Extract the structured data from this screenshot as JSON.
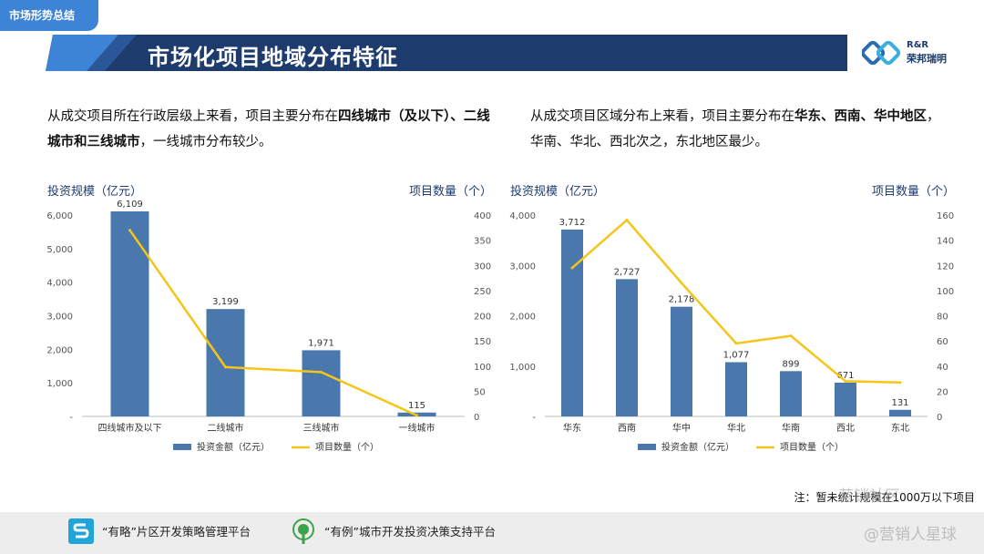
{
  "section_tag": "市场形势总结",
  "title": "市场化项目地域分布特征",
  "logo": {
    "line1": "R&R",
    "line2": "荣邦瑞明"
  },
  "left_desc": {
    "p1": "从成交项目所在行政层级上来看，项目主要分布在",
    "b1": "四线城市（及以下）、二线城市和三线城市",
    "p2": "，一线城市分布较少。"
  },
  "right_desc": {
    "p1": "从成交项目区域分布上来看，项目主要分布在",
    "b1": "华东、西南、华中地区",
    "p2": "，华南、华北、西北次之，东北地区最少。"
  },
  "chart_data": [
    {
      "type": "bar+line",
      "categories": [
        "四线城市及以下",
        "二线城市",
        "三线城市",
        "一线城市"
      ],
      "series": [
        {
          "name": "投资金额（亿元）",
          "kind": "bar",
          "axis": "left",
          "values": [
            6109,
            3199,
            1971,
            115
          ],
          "labels": [
            "6,109",
            "3,199",
            "1,971",
            "115"
          ],
          "color": "#4a78ad"
        },
        {
          "name": "项目数量（个）",
          "kind": "line",
          "axis": "right",
          "values": [
            370,
            98,
            88,
            2
          ],
          "color": "#f5c518"
        }
      ],
      "ylabel_left": "投资规模（亿元）",
      "ylabel_right": "项目数量（个）",
      "ylim_left": [
        0,
        6000
      ],
      "ylim_right": [
        0,
        400
      ],
      "yticks_left": [
        "-",
        "1,000",
        "2,000",
        "3,000",
        "4,000",
        "5,000",
        "6,000"
      ],
      "yticks_right": [
        "0",
        "50",
        "100",
        "150",
        "200",
        "250",
        "300",
        "350",
        "400"
      ],
      "legend": [
        "投资金额（亿元）",
        "项目数量（个）"
      ]
    },
    {
      "type": "bar+line",
      "categories": [
        "华东",
        "西南",
        "华中",
        "华北",
        "华南",
        "西北",
        "东北"
      ],
      "series": [
        {
          "name": "投资金额（亿元）",
          "kind": "bar",
          "axis": "left",
          "values": [
            3712,
            2727,
            2178,
            1077,
            899,
            671,
            131
          ],
          "labels": [
            "3,712",
            "2,727",
            "2,178",
            "1,077",
            "899",
            "671",
            "131"
          ],
          "color": "#4a78ad"
        },
        {
          "name": "项目数量（个）",
          "kind": "line",
          "axis": "right",
          "values": [
            118,
            156,
            106,
            58,
            64,
            28,
            27
          ],
          "color": "#f5c518"
        }
      ],
      "ylabel_left": "投资规模（亿元）",
      "ylabel_right": "项目数量（个）",
      "ylim_left": [
        0,
        4000
      ],
      "ylim_right": [
        0,
        160
      ],
      "yticks_left": [
        "-",
        "1,000",
        "2,000",
        "3,000",
        "4,000"
      ],
      "yticks_right": [
        "0",
        "20",
        "40",
        "60",
        "80",
        "100",
        "120",
        "140",
        "160"
      ],
      "legend": [
        "投资金额（亿元）",
        "项目数量（个）"
      ]
    }
  ],
  "note": "注：暂未统计规模在1000万以下项目",
  "footer": {
    "item1": "“有略”片区开发策略管理平台",
    "item2": "“有例”城市开发投资决策支持平台"
  },
  "watermarks": {
    "w1": "营销社区",
    "w2": "@营销人星球"
  },
  "colors": {
    "navy": "#1e3b6e",
    "accent": "#3e84d6",
    "bar": "#4a78ad",
    "line": "#f5c518"
  }
}
